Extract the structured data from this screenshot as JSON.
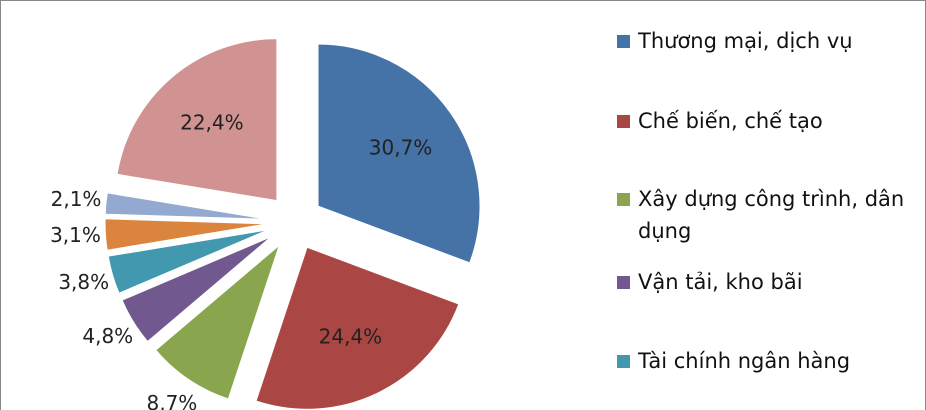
{
  "chart_data": {
    "type": "pie",
    "categories": [
      "Thương mại, dịch vụ",
      "Chế biến, chế tạo",
      "Xây dựng công trình, dân dụng",
      "Vận tải, kho bãi",
      "Tài chính ngân hàng",
      null,
      null,
      null
    ],
    "values": [
      30.7,
      24.4,
      8.7,
      4.8,
      3.8,
      3.1,
      2.1,
      22.4
    ],
    "value_labels": [
      "30,7%",
      "24,4%",
      "8,7%",
      "4,8%",
      "3,8%",
      "3,1%",
      "2,1%",
      "22,4%"
    ],
    "colors": [
      "#4572a7",
      "#aa4643",
      "#89a54e",
      "#71588f",
      "#4198af",
      "#db843d",
      "#93a9cf",
      "#d19392"
    ]
  }
}
